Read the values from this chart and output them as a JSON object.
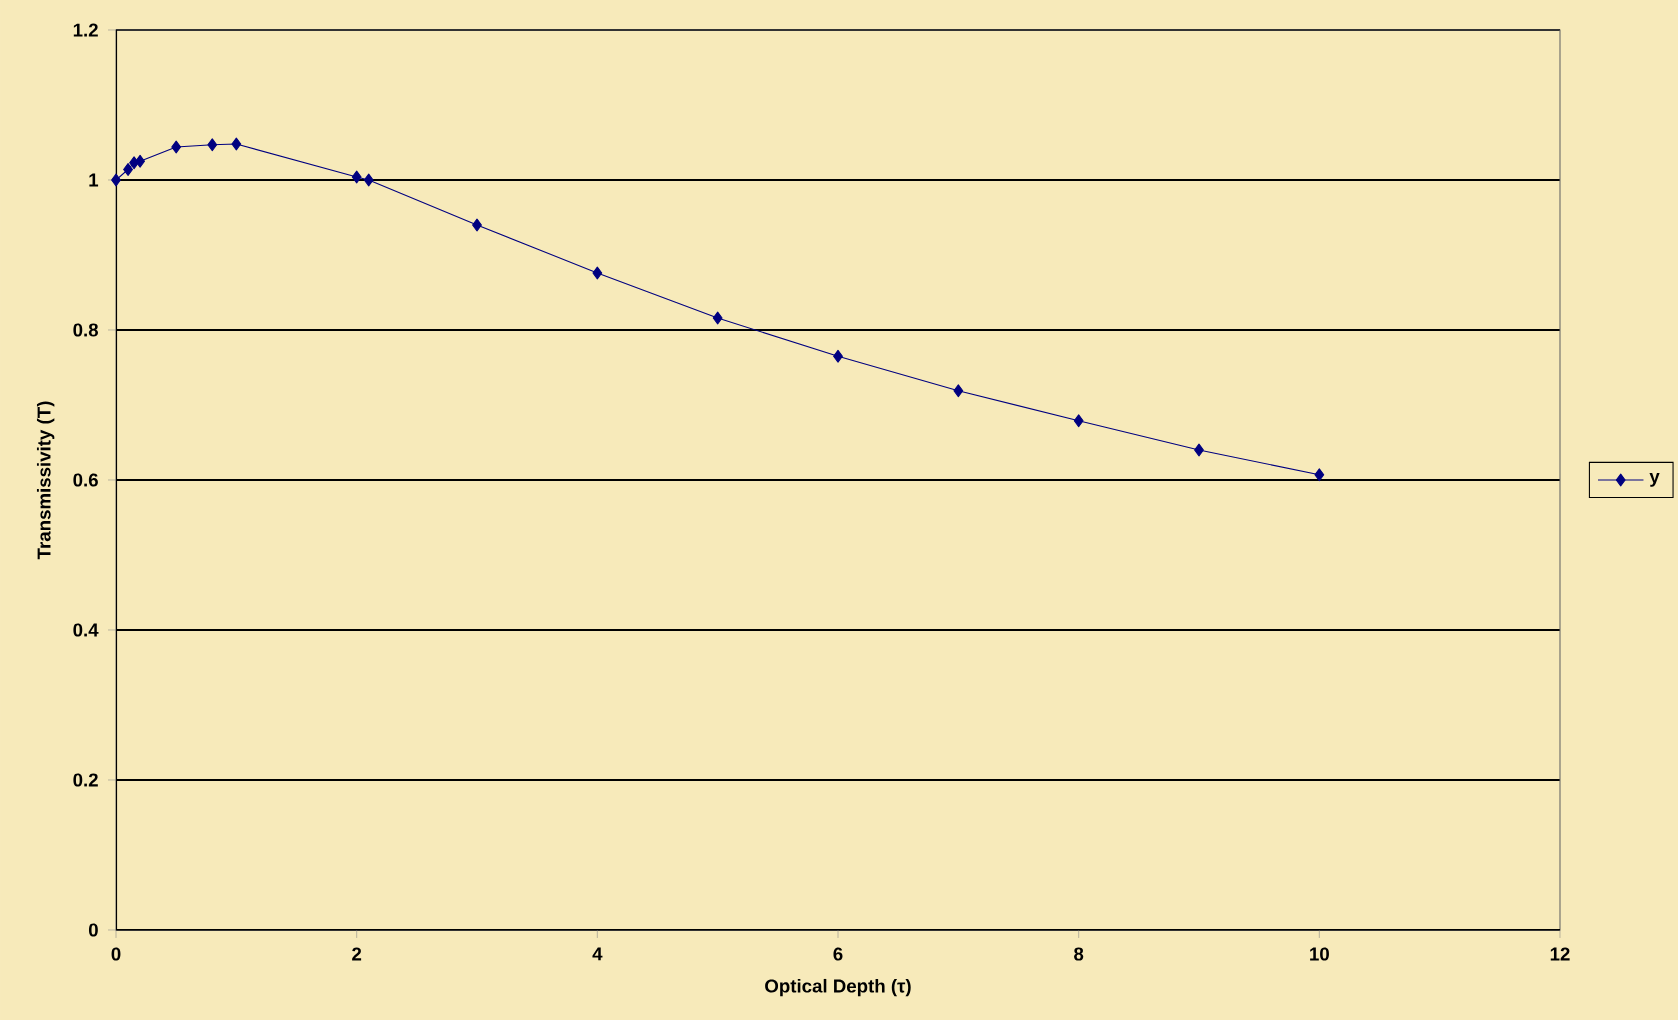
{
  "chart_data": {
    "type": "line",
    "xlabel": "Optical Depth (τ)",
    "ylabel": "Transmissivity (T)",
    "x": [
      0,
      0.1,
      0.15,
      0.2,
      0.5,
      0.8,
      1,
      2,
      2.1,
      3,
      4,
      5,
      6,
      7,
      8,
      9,
      10
    ],
    "series": [
      {
        "name": "y",
        "color": "#000080",
        "values": [
          1.0,
          1.014,
          1.023,
          1.025,
          1.044,
          1.047,
          1.048,
          1.004,
          1.0,
          0.94,
          0.876,
          0.816,
          0.765,
          0.719,
          0.679,
          0.64,
          0.607
        ]
      }
    ],
    "xlim": [
      0,
      12
    ],
    "xticks": [
      0,
      2,
      4,
      6,
      8,
      10,
      12
    ],
    "ylim": [
      0,
      1.2
    ],
    "yticks": [
      0,
      0.2,
      0.4,
      0.6,
      0.8,
      1,
      1.2
    ],
    "grid": "y",
    "legend": "right",
    "marker": "diamond",
    "line_style": "solid"
  }
}
